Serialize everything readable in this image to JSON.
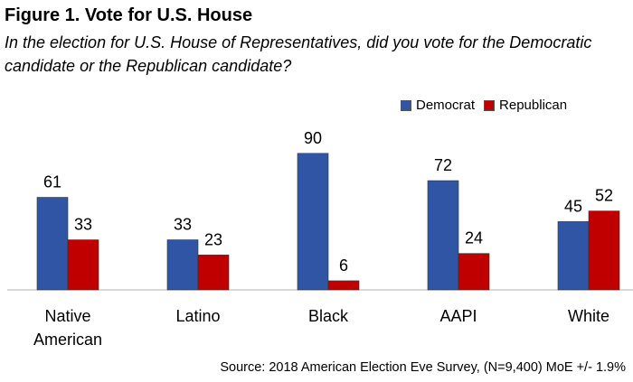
{
  "title": "Figure 1. Vote for U.S. House",
  "subtitle": "In the election for U.S. House of Representatives, did you vote for the Democratic candidate or the Republican candidate?",
  "source": "Source: 2018 American Election Eve Survey, (N=9,400) MoE +/- 1.9%",
  "colors": {
    "democrat": "#2f55a4",
    "republican": "#c00000",
    "axis": "#b0b0b0"
  },
  "chart_data": {
    "type": "bar",
    "categories": [
      [
        "Native",
        "American"
      ],
      [
        "Latino"
      ],
      [
        "Black"
      ],
      [
        "AAPI"
      ],
      [
        "White"
      ]
    ],
    "series": [
      {
        "name": "Democrat",
        "values": [
          61,
          33,
          90,
          72,
          45
        ]
      },
      {
        "name": "Republican",
        "values": [
          33,
          23,
          6,
          24,
          52
        ]
      }
    ],
    "ylim": [
      0,
      100
    ],
    "legend_position": "top-right",
    "grid": false
  }
}
